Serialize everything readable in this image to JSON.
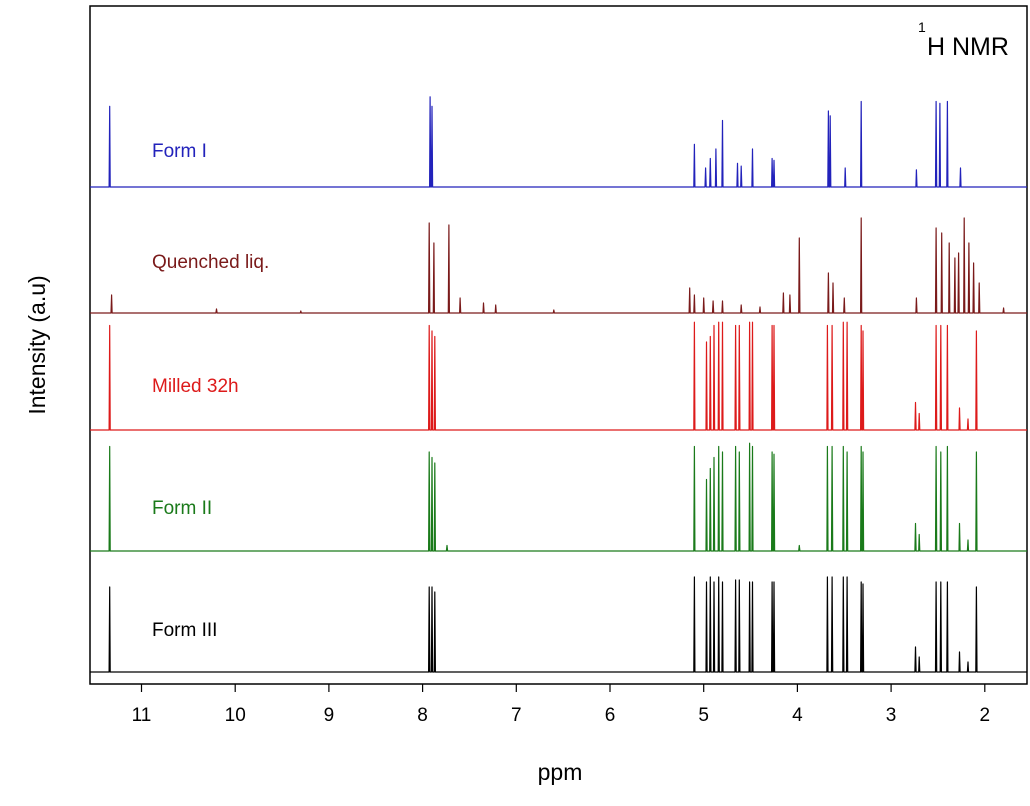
{
  "chart_data": {
    "type": "line",
    "title": "H NMR",
    "title_superscript": "1",
    "xlabel": "ppm",
    "ylabel": "Intensity (a.u)",
    "xlim": [
      11.55,
      1.55
    ],
    "x_reversed": true,
    "x_ticks": [
      11,
      10,
      9,
      8,
      7,
      6,
      5,
      4,
      3,
      2
    ],
    "x_tick_labels": [
      "11",
      "10",
      "9",
      "8",
      "7",
      "6",
      "5",
      "4",
      "3",
      "2"
    ],
    "y_ticks": "none",
    "grid": false,
    "legend": "none",
    "series": [
      {
        "name": "Form I",
        "color": "#2222bb",
        "peaks": [
          {
            "ppm": 11.34,
            "h": 0.85
          },
          {
            "ppm": 7.92,
            "h": 0.95
          },
          {
            "ppm": 7.9,
            "h": 0.85
          },
          {
            "ppm": 5.1,
            "h": 0.45
          },
          {
            "ppm": 4.98,
            "h": 0.2
          },
          {
            "ppm": 4.93,
            "h": 0.3
          },
          {
            "ppm": 4.87,
            "h": 0.4
          },
          {
            "ppm": 4.8,
            "h": 0.7
          },
          {
            "ppm": 4.64,
            "h": 0.25
          },
          {
            "ppm": 4.6,
            "h": 0.22
          },
          {
            "ppm": 4.48,
            "h": 0.4
          },
          {
            "ppm": 4.27,
            "h": 0.3
          },
          {
            "ppm": 4.25,
            "h": 0.28
          },
          {
            "ppm": 3.67,
            "h": 0.8
          },
          {
            "ppm": 3.65,
            "h": 0.75
          },
          {
            "ppm": 3.49,
            "h": 0.2
          },
          {
            "ppm": 3.32,
            "h": 0.9
          },
          {
            "ppm": 2.73,
            "h": 0.18
          },
          {
            "ppm": 2.52,
            "h": 0.9
          },
          {
            "ppm": 2.48,
            "h": 0.88
          },
          {
            "ppm": 2.4,
            "h": 0.9
          },
          {
            "ppm": 2.26,
            "h": 0.2
          }
        ]
      },
      {
        "name": "Quenched liq.",
        "color": "#7a1a1a",
        "peaks": [
          {
            "ppm": 11.32,
            "h": 0.18
          },
          {
            "ppm": 10.2,
            "h": 0.04
          },
          {
            "ppm": 9.3,
            "h": 0.02
          },
          {
            "ppm": 7.93,
            "h": 0.9
          },
          {
            "ppm": 7.88,
            "h": 0.7
          },
          {
            "ppm": 7.72,
            "h": 0.88
          },
          {
            "ppm": 7.6,
            "h": 0.15
          },
          {
            "ppm": 7.35,
            "h": 0.1
          },
          {
            "ppm": 7.22,
            "h": 0.08
          },
          {
            "ppm": 6.6,
            "h": 0.03
          },
          {
            "ppm": 5.15,
            "h": 0.25
          },
          {
            "ppm": 5.1,
            "h": 0.18
          },
          {
            "ppm": 5.0,
            "h": 0.15
          },
          {
            "ppm": 4.9,
            "h": 0.12
          },
          {
            "ppm": 4.8,
            "h": 0.12
          },
          {
            "ppm": 4.6,
            "h": 0.08
          },
          {
            "ppm": 4.4,
            "h": 0.06
          },
          {
            "ppm": 4.15,
            "h": 0.2
          },
          {
            "ppm": 4.08,
            "h": 0.18
          },
          {
            "ppm": 3.98,
            "h": 0.75
          },
          {
            "ppm": 3.67,
            "h": 0.4
          },
          {
            "ppm": 3.62,
            "h": 0.3
          },
          {
            "ppm": 3.5,
            "h": 0.15
          },
          {
            "ppm": 3.32,
            "h": 0.95
          },
          {
            "ppm": 2.73,
            "h": 0.15
          },
          {
            "ppm": 2.52,
            "h": 0.85
          },
          {
            "ppm": 2.46,
            "h": 0.8
          },
          {
            "ppm": 2.38,
            "h": 0.7
          },
          {
            "ppm": 2.32,
            "h": 0.55
          },
          {
            "ppm": 2.28,
            "h": 0.6
          },
          {
            "ppm": 2.22,
            "h": 0.95
          },
          {
            "ppm": 2.17,
            "h": 0.7
          },
          {
            "ppm": 2.12,
            "h": 0.5
          },
          {
            "ppm": 2.06,
            "h": 0.3
          },
          {
            "ppm": 1.8,
            "h": 0.05
          }
        ]
      },
      {
        "name": "Milled 32h",
        "color": "#dd1a1a",
        "peaks": [
          {
            "ppm": 11.34,
            "h": 0.95
          },
          {
            "ppm": 7.93,
            "h": 0.95
          },
          {
            "ppm": 7.9,
            "h": 0.9
          },
          {
            "ppm": 7.87,
            "h": 0.85
          },
          {
            "ppm": 5.1,
            "h": 0.98
          },
          {
            "ppm": 4.97,
            "h": 0.8
          },
          {
            "ppm": 4.93,
            "h": 0.85
          },
          {
            "ppm": 4.89,
            "h": 0.95
          },
          {
            "ppm": 4.84,
            "h": 0.98
          },
          {
            "ppm": 4.8,
            "h": 0.98
          },
          {
            "ppm": 4.66,
            "h": 0.95
          },
          {
            "ppm": 4.62,
            "h": 0.95
          },
          {
            "ppm": 4.51,
            "h": 0.98
          },
          {
            "ppm": 4.48,
            "h": 0.98
          },
          {
            "ppm": 4.27,
            "h": 0.95
          },
          {
            "ppm": 4.25,
            "h": 0.95
          },
          {
            "ppm": 3.68,
            "h": 0.95
          },
          {
            "ppm": 3.63,
            "h": 0.95
          },
          {
            "ppm": 3.51,
            "h": 0.98
          },
          {
            "ppm": 3.47,
            "h": 0.98
          },
          {
            "ppm": 3.32,
            "h": 0.95
          },
          {
            "ppm": 3.3,
            "h": 0.9
          },
          {
            "ppm": 2.74,
            "h": 0.25
          },
          {
            "ppm": 2.7,
            "h": 0.15
          },
          {
            "ppm": 2.52,
            "h": 0.95
          },
          {
            "ppm": 2.47,
            "h": 0.95
          },
          {
            "ppm": 2.4,
            "h": 0.95
          },
          {
            "ppm": 2.27,
            "h": 0.2
          },
          {
            "ppm": 2.18,
            "h": 0.1
          },
          {
            "ppm": 2.09,
            "h": 0.9
          }
        ]
      },
      {
        "name": "Form II",
        "color": "#1a7a1a",
        "peaks": [
          {
            "ppm": 11.34,
            "h": 0.95
          },
          {
            "ppm": 7.93,
            "h": 0.9
          },
          {
            "ppm": 7.9,
            "h": 0.85
          },
          {
            "ppm": 7.87,
            "h": 0.8
          },
          {
            "ppm": 7.74,
            "h": 0.05
          },
          {
            "ppm": 5.1,
            "h": 0.95
          },
          {
            "ppm": 4.97,
            "h": 0.65
          },
          {
            "ppm": 4.93,
            "h": 0.75
          },
          {
            "ppm": 4.89,
            "h": 0.85
          },
          {
            "ppm": 4.84,
            "h": 0.95
          },
          {
            "ppm": 4.8,
            "h": 0.9
          },
          {
            "ppm": 4.66,
            "h": 0.95
          },
          {
            "ppm": 4.62,
            "h": 0.9
          },
          {
            "ppm": 4.51,
            "h": 0.98
          },
          {
            "ppm": 4.48,
            "h": 0.95
          },
          {
            "ppm": 4.27,
            "h": 0.9
          },
          {
            "ppm": 4.25,
            "h": 0.88
          },
          {
            "ppm": 3.98,
            "h": 0.05
          },
          {
            "ppm": 3.68,
            "h": 0.95
          },
          {
            "ppm": 3.63,
            "h": 0.95
          },
          {
            "ppm": 3.51,
            "h": 0.95
          },
          {
            "ppm": 3.47,
            "h": 0.9
          },
          {
            "ppm": 3.32,
            "h": 0.95
          },
          {
            "ppm": 3.3,
            "h": 0.9
          },
          {
            "ppm": 2.74,
            "h": 0.25
          },
          {
            "ppm": 2.7,
            "h": 0.15
          },
          {
            "ppm": 2.52,
            "h": 0.95
          },
          {
            "ppm": 2.47,
            "h": 0.9
          },
          {
            "ppm": 2.4,
            "h": 0.95
          },
          {
            "ppm": 2.27,
            "h": 0.25
          },
          {
            "ppm": 2.18,
            "h": 0.1
          },
          {
            "ppm": 2.09,
            "h": 0.9
          }
        ]
      },
      {
        "name": "Form III",
        "color": "#000000",
        "peaks": [
          {
            "ppm": 11.34,
            "h": 0.85
          },
          {
            "ppm": 7.93,
            "h": 0.85
          },
          {
            "ppm": 7.9,
            "h": 0.85
          },
          {
            "ppm": 7.87,
            "h": 0.8
          },
          {
            "ppm": 5.1,
            "h": 0.95
          },
          {
            "ppm": 4.97,
            "h": 0.9
          },
          {
            "ppm": 4.93,
            "h": 0.95
          },
          {
            "ppm": 4.89,
            "h": 0.9
          },
          {
            "ppm": 4.84,
            "h": 0.95
          },
          {
            "ppm": 4.8,
            "h": 0.9
          },
          {
            "ppm": 4.66,
            "h": 0.92
          },
          {
            "ppm": 4.62,
            "h": 0.92
          },
          {
            "ppm": 4.51,
            "h": 0.9
          },
          {
            "ppm": 4.48,
            "h": 0.9
          },
          {
            "ppm": 4.27,
            "h": 0.9
          },
          {
            "ppm": 4.25,
            "h": 0.9
          },
          {
            "ppm": 3.68,
            "h": 0.95
          },
          {
            "ppm": 3.63,
            "h": 0.95
          },
          {
            "ppm": 3.51,
            "h": 0.95
          },
          {
            "ppm": 3.47,
            "h": 0.95
          },
          {
            "ppm": 3.32,
            "h": 0.9
          },
          {
            "ppm": 3.3,
            "h": 0.88
          },
          {
            "ppm": 2.74,
            "h": 0.25
          },
          {
            "ppm": 2.7,
            "h": 0.15
          },
          {
            "ppm": 2.52,
            "h": 0.9
          },
          {
            "ppm": 2.47,
            "h": 0.9
          },
          {
            "ppm": 2.4,
            "h": 0.9
          },
          {
            "ppm": 2.27,
            "h": 0.2
          },
          {
            "ppm": 2.18,
            "h": 0.1
          },
          {
            "ppm": 2.09,
            "h": 0.85
          }
        ]
      }
    ]
  }
}
